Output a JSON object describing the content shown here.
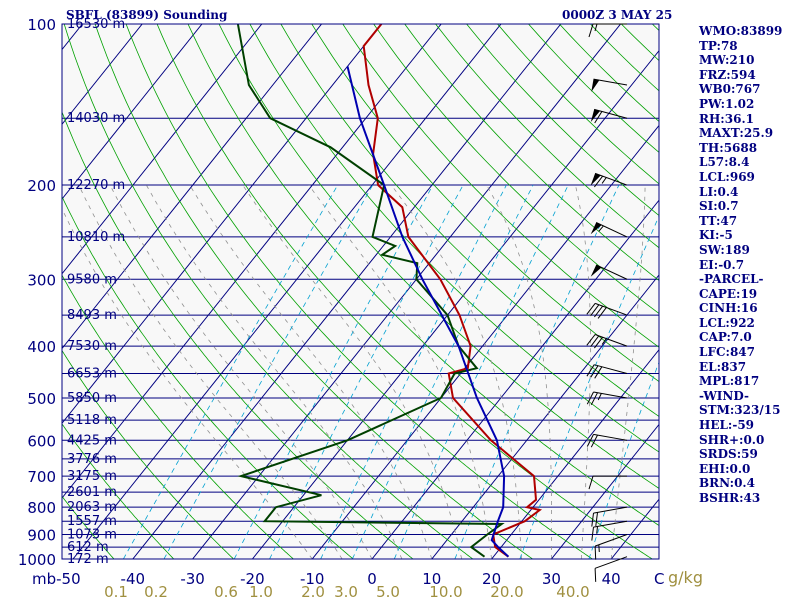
{
  "header": {
    "title": "SBFL (83899) Sounding",
    "valid_time": "0000Z  3 MAY 25"
  },
  "stats_panel": [
    "WMO:83899",
    "TP:78",
    "MW:210",
    "FRZ:594",
    "WB0:767",
    "PW:1.02",
    "RH:36.1",
    "MAXT:25.9",
    "TH:5688",
    "L57:8.4",
    "LCL:969",
    "LI:0.4",
    "SI:0.7",
    "TT:47",
    "KI:-5",
    "SW:189",
    "EI:-0.7",
    "-PARCEL-",
    "CAPE:19",
    "CINH:16",
    "LCL:922",
    "CAP:7.0",
    "LFC:847",
    "EL:837",
    "MPL:817",
    "-WIND-",
    "STM:323/15",
    "HEL:-59",
    "SHR+:0.0",
    "SRDS:59",
    "EHI:0.0",
    "BRN:0.4",
    "BSHR:43"
  ],
  "colors": {
    "background": "#f8f8f8",
    "isobar": "#000080",
    "isotherm": "#000080",
    "dry_adiabat": "#00a000",
    "moist_adiabat": "#909090",
    "mixing_ratio": "#00a0d0",
    "temperature": "#b00000",
    "dewpoint": "#004000",
    "parcel": "#0000b0",
    "header_text": "#000080",
    "mixing_label": "#a09040"
  },
  "chart_data": {
    "type": "line",
    "title": "SBFL (83899) Sounding",
    "subtitle": "0000Z  3 MAY 25",
    "xlabel": "",
    "ylabel": "mb",
    "x_unit_label": "C",
    "mixing_ratio_unit": "g/kg",
    "ylim": [
      1000,
      100
    ],
    "xlim": [
      -50,
      50
    ],
    "pressure_ticks": [
      100,
      200,
      300,
      400,
      500,
      600,
      700,
      800,
      900,
      1000
    ],
    "pressure_tick_labels": [
      "100",
      "200",
      "300",
      "400",
      "500",
      "600",
      "700",
      "800",
      "900",
      "1000"
    ],
    "temperature_ticks": [
      -40,
      -30,
      -20,
      -10,
      0,
      10,
      20,
      30,
      40
    ],
    "temperature_tick_labels": [
      "-40",
      "-30",
      "-20",
      "-10",
      "0",
      "10",
      "20",
      "30",
      "40"
    ],
    "axis_corner_labels": [
      "mb-50",
      "C"
    ],
    "mixing_ratio_labels": [
      "0.1",
      "0.2",
      "0.6",
      "1.0",
      "2.0",
      "3.0",
      "5.0",
      "10.0",
      "20.0",
      "40.0"
    ],
    "height_levels": [
      {
        "p": 100,
        "label": "16530 m"
      },
      {
        "p": 150,
        "label": "14030 m"
      },
      {
        "p": 200,
        "label": "12270 m"
      },
      {
        "p": 250,
        "label": "10810 m"
      },
      {
        "p": 300,
        "label": "9580 m"
      },
      {
        "p": 350,
        "label": "8493 m"
      },
      {
        "p": 400,
        "label": "7530 m"
      },
      {
        "p": 450,
        "label": "6653 m"
      },
      {
        "p": 500,
        "label": "5850 m"
      },
      {
        "p": 550,
        "label": "5118 m"
      },
      {
        "p": 600,
        "label": "4425 m"
      },
      {
        "p": 650,
        "label": "3776 m"
      },
      {
        "p": 700,
        "label": "3175 m"
      },
      {
        "p": 750,
        "label": "2601 m"
      },
      {
        "p": 800,
        "label": "2063 m"
      },
      {
        "p": 850,
        "label": "1557 m"
      },
      {
        "p": 900,
        "label": "1073 m"
      },
      {
        "p": 950,
        "label": "612 m"
      },
      {
        "p": 1000,
        "label": "172 m"
      }
    ],
    "series": [
      {
        "name": "Temperature",
        "points": [
          {
            "p": 990,
            "t": 22.5
          },
          {
            "p": 950,
            "t": 19.0
          },
          {
            "p": 900,
            "t": 17.0
          },
          {
            "p": 850,
            "t": 20.5
          },
          {
            "p": 810,
            "t": 21.5
          },
          {
            "p": 800,
            "t": 19.0
          },
          {
            "p": 775,
            "t": 19.5
          },
          {
            "p": 700,
            "t": 16.0
          },
          {
            "p": 600,
            "t": 4.0
          },
          {
            "p": 500,
            "t": -8.0
          },
          {
            "p": 450,
            "t": -12.0
          },
          {
            "p": 440,
            "t": -9.5
          },
          {
            "p": 400,
            "t": -12.0
          },
          {
            "p": 350,
            "t": -18.0
          },
          {
            "p": 300,
            "t": -26.0
          },
          {
            "p": 250,
            "t": -37.0
          },
          {
            "p": 220,
            "t": -42.0
          },
          {
            "p": 200,
            "t": -49.0
          },
          {
            "p": 175,
            "t": -54.0
          },
          {
            "p": 150,
            "t": -58.0
          },
          {
            "p": 130,
            "t": -64.0
          },
          {
            "p": 110,
            "t": -70.0
          },
          {
            "p": 100,
            "t": -70.0
          }
        ]
      },
      {
        "name": "Dewpoint",
        "points": [
          {
            "p": 990,
            "t": 18.5
          },
          {
            "p": 950,
            "t": 15.0
          },
          {
            "p": 900,
            "t": 16.0
          },
          {
            "p": 860,
            "t": 17.0
          },
          {
            "p": 850,
            "t": -23.0
          },
          {
            "p": 800,
            "t": -23.0
          },
          {
            "p": 760,
            "t": -17.0
          },
          {
            "p": 700,
            "t": -33.0
          },
          {
            "p": 600,
            "t": -20.0
          },
          {
            "p": 500,
            "t": -10.0
          },
          {
            "p": 450,
            "t": -11.0
          },
          {
            "p": 440,
            "t": -8.0
          },
          {
            "p": 400,
            "t": -14.0
          },
          {
            "p": 350,
            "t": -20.0
          },
          {
            "p": 300,
            "t": -30.0
          },
          {
            "p": 280,
            "t": -32.0
          },
          {
            "p": 270,
            "t": -39.0
          },
          {
            "p": 260,
            "t": -38.0
          },
          {
            "p": 250,
            "t": -43.0
          },
          {
            "p": 200,
            "t": -48.0
          },
          {
            "p": 170,
            "t": -62.0
          },
          {
            "p": 150,
            "t": -76.0
          },
          {
            "p": 130,
            "t": -84.0
          },
          {
            "p": 100,
            "t": -94.0
          }
        ]
      },
      {
        "name": "Parcel",
        "points": [
          {
            "p": 990,
            "t": 22.5
          },
          {
            "p": 950,
            "t": 19.5
          },
          {
            "p": 922,
            "t": 17.5
          },
          {
            "p": 850,
            "t": 16.0
          },
          {
            "p": 800,
            "t": 15.0
          },
          {
            "p": 700,
            "t": 11.0
          },
          {
            "p": 600,
            "t": 5.0
          },
          {
            "p": 500,
            "t": -4.0
          },
          {
            "p": 400,
            "t": -14.0
          },
          {
            "p": 300,
            "t": -29.0
          },
          {
            "p": 250,
            "t": -38.0
          },
          {
            "p": 200,
            "t": -48.0
          },
          {
            "p": 150,
            "t": -61.0
          },
          {
            "p": 120,
            "t": -70.0
          }
        ]
      }
    ],
    "wind_barbs": [
      {
        "p": 990,
        "dir": 250,
        "spd": 10
      },
      {
        "p": 900,
        "dir": 250,
        "spd": 15
      },
      {
        "p": 850,
        "dir": 260,
        "spd": 15
      },
      {
        "p": 800,
        "dir": 260,
        "spd": 20
      },
      {
        "p": 700,
        "dir": 270,
        "spd": 10
      },
      {
        "p": 600,
        "dir": 280,
        "spd": 20
      },
      {
        "p": 500,
        "dir": 280,
        "spd": 25
      },
      {
        "p": 450,
        "dir": 285,
        "spd": 30
      },
      {
        "p": 400,
        "dir": 290,
        "spd": 35
      },
      {
        "p": 350,
        "dir": 290,
        "spd": 40
      },
      {
        "p": 300,
        "dir": 295,
        "spd": 50
      },
      {
        "p": 250,
        "dir": 295,
        "spd": 55
      },
      {
        "p": 200,
        "dir": 290,
        "spd": 65
      },
      {
        "p": 150,
        "dir": 285,
        "spd": 60
      },
      {
        "p": 130,
        "dir": 280,
        "spd": 50
      },
      {
        "p": 100,
        "dir": 270,
        "spd": 15
      }
    ]
  }
}
